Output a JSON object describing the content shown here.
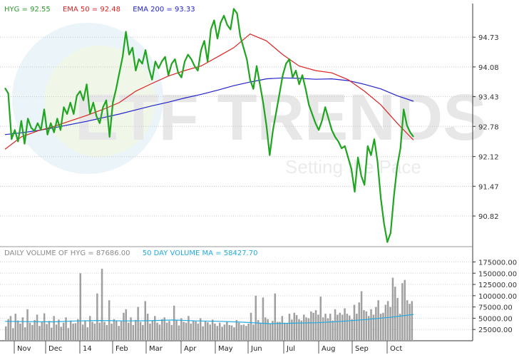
{
  "chart_data": [
    {
      "type": "line",
      "legend": [
        {
          "text": "HYG = 92.55",
          "color": "#2a9a2a"
        },
        {
          "text": "EMA 50 = 92.48",
          "color": "#dd2222"
        },
        {
          "text": "EMA 200 = 93.33",
          "color": "#2222cc"
        }
      ],
      "ylim": [
        90.15,
        95.45
      ],
      "yticks": [
        "94.73",
        "94.08",
        "93.43",
        "92.78",
        "92.12",
        "91.47",
        "90.82"
      ],
      "xticks": [
        "Nov",
        "Dec",
        "14",
        "Feb",
        "Mar",
        "Apr",
        "May",
        "Jun",
        "Jul",
        "Aug",
        "Sep",
        "Oct"
      ],
      "grid": true,
      "series": [
        {
          "name": "HYG",
          "color": "#1fa51f",
          "x": [
            0,
            2,
            4,
            6,
            8,
            10,
            12,
            14,
            16,
            18,
            20,
            22,
            24,
            26,
            28,
            30,
            32,
            34,
            36,
            38,
            40,
            42,
            44,
            46,
            48,
            50,
            52,
            54,
            56,
            58,
            60,
            62,
            64,
            66,
            68,
            70,
            72,
            74,
            76,
            78,
            80,
            82,
            84,
            86,
            88,
            90,
            92,
            94,
            96,
            98,
            100,
            102,
            104,
            106,
            108,
            110,
            112,
            114,
            116,
            118,
            120,
            122,
            124,
            126,
            128,
            130,
            132,
            134,
            136,
            138,
            140,
            142,
            144,
            146,
            148,
            150,
            152,
            154,
            156,
            158,
            160,
            162,
            164,
            166,
            168,
            170,
            172,
            174,
            176,
            178,
            180,
            182,
            184,
            186,
            188,
            190,
            192,
            194,
            196,
            198,
            200,
            202,
            204,
            206,
            208,
            210,
            212,
            214,
            216,
            218,
            220,
            222,
            224,
            226,
            228,
            230,
            232,
            234,
            236,
            238,
            240,
            242,
            244,
            246,
            248,
            250
          ],
          "values": [
            93.62,
            93.5,
            92.5,
            92.7,
            92.45,
            92.9,
            92.4,
            92.95,
            92.75,
            92.68,
            92.85,
            92.7,
            93.15,
            92.6,
            92.85,
            92.65,
            92.95,
            92.7,
            93.2,
            93.05,
            93.3,
            93.05,
            93.45,
            93.55,
            93.35,
            93.7,
            93.05,
            93.3,
            93.0,
            92.85,
            93.2,
            93.35,
            92.55,
            93.3,
            93.6,
            93.95,
            94.3,
            94.85,
            94.35,
            94.5,
            94.0,
            94.25,
            94.15,
            94.45,
            94.05,
            93.8,
            94.2,
            94.05,
            94.2,
            94.3,
            93.9,
            94.15,
            94.25,
            93.95,
            93.85,
            94.2,
            94.35,
            94.25,
            94.1,
            94.0,
            94.45,
            94.65,
            94.2,
            94.9,
            95.1,
            94.7,
            95.05,
            95.2,
            95.0,
            94.9,
            95.35,
            95.25,
            94.75,
            94.5,
            94.25,
            93.8,
            93.6,
            94.1,
            93.7,
            93.3,
            92.8,
            92.15,
            92.7,
            93.1,
            93.5,
            93.9,
            94.15,
            94.25,
            93.85,
            94.0,
            93.7,
            93.9,
            93.6,
            93.25,
            93.05,
            92.85,
            92.7,
            92.9,
            93.2,
            92.95,
            92.7,
            92.55,
            92.45,
            92.3,
            92.35,
            92.1,
            91.85,
            91.35,
            92.1,
            91.7,
            91.5,
            92.35,
            92.15,
            92.5,
            92.0,
            91.2,
            90.65,
            90.25,
            90.45,
            91.25,
            91.9,
            92.3,
            93.15,
            92.8,
            92.65,
            92.55
          ]
        },
        {
          "name": "EMA 50",
          "color": "#dd2222",
          "x": [
            0,
            10,
            20,
            30,
            40,
            50,
            60,
            70,
            80,
            90,
            100,
            110,
            120,
            130,
            140,
            150,
            160,
            170,
            180,
            190,
            200,
            210,
            220,
            230,
            240,
            250
          ],
          "values": [
            92.28,
            92.55,
            92.68,
            92.78,
            92.9,
            93.02,
            93.15,
            93.3,
            93.55,
            93.72,
            93.88,
            94.0,
            94.1,
            94.3,
            94.5,
            94.8,
            94.65,
            94.35,
            94.1,
            94.0,
            93.95,
            93.8,
            93.55,
            93.25,
            92.85,
            92.48
          ]
        },
        {
          "name": "EMA 200",
          "color": "#2222cc",
          "x": [
            0,
            10,
            20,
            30,
            40,
            50,
            60,
            70,
            80,
            90,
            100,
            110,
            120,
            130,
            140,
            150,
            160,
            170,
            180,
            190,
            200,
            210,
            220,
            230,
            240,
            250
          ],
          "values": [
            92.6,
            92.64,
            92.69,
            92.75,
            92.82,
            92.89,
            92.97,
            93.05,
            93.14,
            93.23,
            93.31,
            93.4,
            93.48,
            93.57,
            93.67,
            93.75,
            93.82,
            93.84,
            93.83,
            93.81,
            93.82,
            93.78,
            93.7,
            93.6,
            93.45,
            93.33
          ]
        }
      ]
    },
    {
      "type": "bar",
      "legend": [
        {
          "text": "DAILY VOLUME OF HYG = 87686.00",
          "color": "#8a8a8a"
        },
        {
          "text": "50 DAY VOLUME MA = 58427.70",
          "color": "#22aadd"
        }
      ],
      "ylim": [
        0,
        190000
      ],
      "yticks": [
        "175000.00",
        "150000.00",
        "125000.00",
        "100000.00",
        "75000.00",
        "50000.00",
        "25000.00"
      ],
      "series": [
        {
          "name": "DAILY VOLUME OF HYG",
          "color": "#a0a0a0",
          "values": [
            32000,
            48000,
            55000,
            28000,
            60000,
            45000,
            38000,
            52000,
            30000,
            70000,
            40000,
            35000,
            46000,
            58000,
            33000,
            42000,
            61000,
            37000,
            44000,
            29000,
            55000,
            36000,
            47000,
            31000,
            40000,
            52000,
            28000,
            45000,
            38000,
            39000,
            48000,
            150000,
            36000,
            44000,
            30000,
            55000,
            42000,
            38000,
            105000,
            40000,
            160000,
            42000,
            35000,
            90000,
            38000,
            48000,
            45000,
            33000,
            43000,
            62000,
            70000,
            40000,
            52000,
            35000,
            46000,
            75000,
            42000,
            35000,
            88000,
            60000,
            38000,
            45000,
            55000,
            40000,
            36000,
            48000,
            52000,
            40000,
            44000,
            35000,
            78000,
            46000,
            34000,
            50000,
            42000,
            40000,
            55000,
            38000,
            45000,
            43000,
            38000,
            50000,
            32000,
            44000,
            41000,
            36000,
            47000,
            38000,
            33000,
            40000,
            31000,
            36000,
            42000,
            35000,
            34000,
            30000,
            46000,
            40000,
            35000,
            36000,
            33000,
            38000,
            62000,
            36000,
            100000,
            46000,
            40000,
            96000,
            52000,
            48000,
            38000,
            44000,
            105000,
            42000,
            42000,
            55000,
            40000,
            38000,
            60000,
            47000,
            62000,
            57000,
            48000,
            45000,
            58000,
            52000,
            50000,
            65000,
            62000,
            68000,
            58000,
            98000,
            52000,
            60000,
            50000,
            60000,
            45000,
            70000,
            58000,
            62000,
            58000,
            72000,
            60000,
            56000,
            48000,
            80000,
            60000,
            85000,
            110000,
            68000,
            65000,
            55000,
            70000,
            58000,
            75000,
            90000,
            60000,
            62000,
            80000,
            88000,
            75000,
            140000,
            120000,
            95000,
            60000,
            128000,
            135000,
            90000,
            82000,
            88000
          ]
        },
        {
          "name": "50 DAY VOLUME MA",
          "color": "#22aadd",
          "x": [
            0,
            10,
            20,
            30,
            40,
            50,
            60,
            70,
            80,
            90,
            100,
            110,
            120,
            130,
            140,
            150,
            160,
            170
          ],
          "values": [
            43000,
            42500,
            42000,
            44000,
            45000,
            44000,
            44500,
            46000,
            44000,
            43000,
            41000,
            38000,
            39000,
            40000,
            43000,
            47000,
            52000,
            58427.7
          ]
        }
      ]
    }
  ],
  "watermark": {
    "brand": "ETF TRENDS",
    "tagline": "Setting the Pace"
  }
}
